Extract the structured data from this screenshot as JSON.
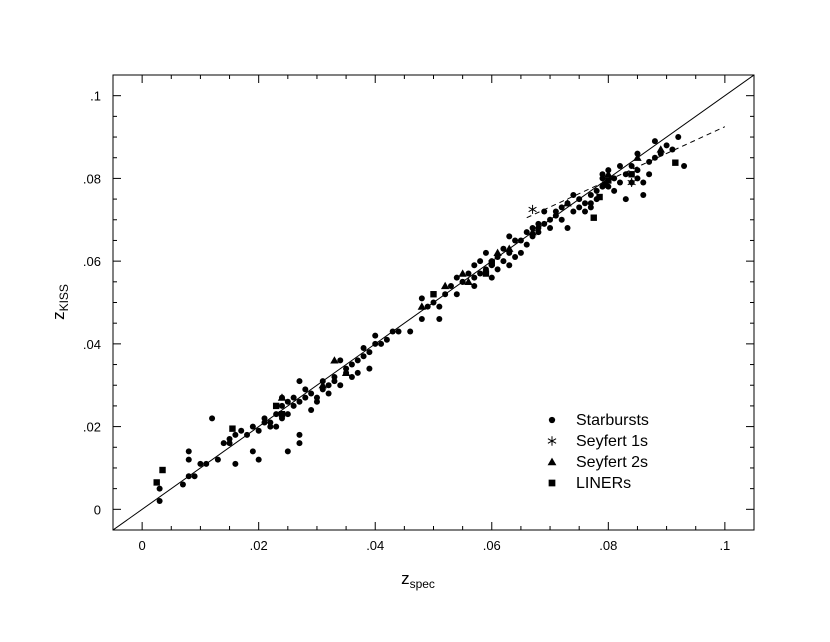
{
  "chart_data": {
    "type": "scatter",
    "title": "",
    "xlabel": {
      "main": "z",
      "sub": "spec"
    },
    "ylabel": {
      "main": "z",
      "sub": "KISS"
    },
    "xlim": [
      -0.005,
      0.105
    ],
    "ylim": [
      -0.005,
      0.105
    ],
    "xticks": [
      0,
      0.02,
      0.04,
      0.06,
      0.08,
      0.1
    ],
    "xtick_labels": [
      "0",
      ".02",
      ".04",
      ".06",
      ".08",
      ".1"
    ],
    "yticks": [
      0,
      0.02,
      0.04,
      0.06,
      0.08,
      0.1
    ],
    "ytick_labels": [
      "0",
      ".02",
      ".04",
      ".06",
      ".08",
      ".1"
    ],
    "grid": false,
    "legend_position": "bottom-right",
    "lines": [
      {
        "kind": "identity",
        "style": "solid",
        "points": [
          [
            -0.005,
            -0.005
          ],
          [
            0.105,
            0.105
          ]
        ]
      },
      {
        "kind": "fit",
        "style": "dashed",
        "points": [
          [
            0.066,
            0.0705
          ],
          [
            0.1,
            0.0925
          ]
        ]
      }
    ],
    "series": [
      {
        "name": "Starbursts",
        "marker": "circle",
        "points": [
          [
            0.003,
            0.002
          ],
          [
            0.003,
            0.005
          ],
          [
            0.007,
            0.006
          ],
          [
            0.008,
            0.008
          ],
          [
            0.008,
            0.012
          ],
          [
            0.008,
            0.014
          ],
          [
            0.009,
            0.008
          ],
          [
            0.01,
            0.011
          ],
          [
            0.011,
            0.011
          ],
          [
            0.012,
            0.022
          ],
          [
            0.013,
            0.012
          ],
          [
            0.014,
            0.016
          ],
          [
            0.015,
            0.016
          ],
          [
            0.015,
            0.017
          ],
          [
            0.016,
            0.011
          ],
          [
            0.016,
            0.018
          ],
          [
            0.017,
            0.019
          ],
          [
            0.018,
            0.018
          ],
          [
            0.019,
            0.014
          ],
          [
            0.019,
            0.02
          ],
          [
            0.02,
            0.012
          ],
          [
            0.02,
            0.019
          ],
          [
            0.021,
            0.021
          ],
          [
            0.021,
            0.022
          ],
          [
            0.022,
            0.02
          ],
          [
            0.022,
            0.021
          ],
          [
            0.023,
            0.023
          ],
          [
            0.023,
            0.02
          ],
          [
            0.024,
            0.022
          ],
          [
            0.024,
            0.027
          ],
          [
            0.024,
            0.025
          ],
          [
            0.025,
            0.014
          ],
          [
            0.025,
            0.023
          ],
          [
            0.025,
            0.026
          ],
          [
            0.026,
            0.027
          ],
          [
            0.026,
            0.025
          ],
          [
            0.027,
            0.016
          ],
          [
            0.027,
            0.018
          ],
          [
            0.027,
            0.026
          ],
          [
            0.027,
            0.031
          ],
          [
            0.028,
            0.029
          ],
          [
            0.028,
            0.027
          ],
          [
            0.029,
            0.024
          ],
          [
            0.029,
            0.028
          ],
          [
            0.03,
            0.027
          ],
          [
            0.03,
            0.026
          ],
          [
            0.031,
            0.029
          ],
          [
            0.031,
            0.031
          ],
          [
            0.032,
            0.03
          ],
          [
            0.032,
            0.028
          ],
          [
            0.033,
            0.031
          ],
          [
            0.033,
            0.032
          ],
          [
            0.034,
            0.03
          ],
          [
            0.034,
            0.036
          ],
          [
            0.035,
            0.033
          ],
          [
            0.035,
            0.034
          ],
          [
            0.036,
            0.035
          ],
          [
            0.036,
            0.032
          ],
          [
            0.037,
            0.033
          ],
          [
            0.037,
            0.036
          ],
          [
            0.038,
            0.039
          ],
          [
            0.038,
            0.037
          ],
          [
            0.039,
            0.038
          ],
          [
            0.039,
            0.034
          ],
          [
            0.04,
            0.04
          ],
          [
            0.04,
            0.042
          ],
          [
            0.041,
            0.04
          ],
          [
            0.042,
            0.041
          ],
          [
            0.043,
            0.043
          ],
          [
            0.044,
            0.043
          ],
          [
            0.046,
            0.043
          ],
          [
            0.048,
            0.046
          ],
          [
            0.048,
            0.051
          ],
          [
            0.049,
            0.049
          ],
          [
            0.05,
            0.05
          ],
          [
            0.051,
            0.049
          ],
          [
            0.051,
            0.046
          ],
          [
            0.052,
            0.052
          ],
          [
            0.053,
            0.054
          ],
          [
            0.054,
            0.056
          ],
          [
            0.054,
            0.052
          ],
          [
            0.055,
            0.055
          ],
          [
            0.056,
            0.057
          ],
          [
            0.057,
            0.056
          ],
          [
            0.057,
            0.054
          ],
          [
            0.058,
            0.06
          ],
          [
            0.058,
            0.057
          ],
          [
            0.059,
            0.058
          ],
          [
            0.059,
            0.062
          ],
          [
            0.06,
            0.059
          ],
          [
            0.06,
            0.06
          ],
          [
            0.06,
            0.056
          ],
          [
            0.061,
            0.058
          ],
          [
            0.061,
            0.061
          ],
          [
            0.062,
            0.063
          ],
          [
            0.062,
            0.06
          ],
          [
            0.063,
            0.062
          ],
          [
            0.063,
            0.059
          ],
          [
            0.064,
            0.065
          ],
          [
            0.064,
            0.061
          ],
          [
            0.065,
            0.062
          ],
          [
            0.065,
            0.065
          ],
          [
            0.066,
            0.064
          ],
          [
            0.066,
            0.067
          ],
          [
            0.067,
            0.068
          ],
          [
            0.067,
            0.066
          ],
          [
            0.068,
            0.068
          ],
          [
            0.068,
            0.067
          ],
          [
            0.069,
            0.069
          ],
          [
            0.069,
            0.072
          ],
          [
            0.07,
            0.068
          ],
          [
            0.07,
            0.07
          ],
          [
            0.071,
            0.072
          ],
          [
            0.071,
            0.071
          ],
          [
            0.072,
            0.073
          ],
          [
            0.072,
            0.07
          ],
          [
            0.073,
            0.074
          ],
          [
            0.073,
            0.068
          ],
          [
            0.074,
            0.072
          ],
          [
            0.074,
            0.076
          ],
          [
            0.075,
            0.073
          ],
          [
            0.075,
            0.075
          ],
          [
            0.076,
            0.074
          ],
          [
            0.076,
            0.072
          ],
          [
            0.077,
            0.076
          ],
          [
            0.077,
            0.073
          ],
          [
            0.078,
            0.077
          ],
          [
            0.078,
            0.075
          ],
          [
            0.079,
            0.078
          ],
          [
            0.079,
            0.08
          ],
          [
            0.08,
            0.078
          ],
          [
            0.08,
            0.082
          ],
          [
            0.081,
            0.077
          ],
          [
            0.081,
            0.08
          ],
          [
            0.082,
            0.083
          ],
          [
            0.082,
            0.079
          ],
          [
            0.083,
            0.081
          ],
          [
            0.083,
            0.075
          ],
          [
            0.084,
            0.083
          ],
          [
            0.084,
            0.079
          ],
          [
            0.085,
            0.082
          ],
          [
            0.085,
            0.086
          ],
          [
            0.086,
            0.076
          ],
          [
            0.086,
            0.079
          ],
          [
            0.087,
            0.084
          ],
          [
            0.087,
            0.081
          ],
          [
            0.088,
            0.085
          ],
          [
            0.088,
            0.089
          ],
          [
            0.089,
            0.086
          ],
          [
            0.09,
            0.088
          ],
          [
            0.091,
            0.087
          ],
          [
            0.092,
            0.09
          ],
          [
            0.093,
            0.083
          ],
          [
            0.055,
            0.055
          ],
          [
            0.057,
            0.059
          ],
          [
            0.063,
            0.066
          ],
          [
            0.077,
            0.074
          ],
          [
            0.079,
            0.081
          ],
          [
            0.085,
            0.08
          ],
          [
            0.068,
            0.069
          ]
        ]
      },
      {
        "name": "Seyfert 1s",
        "marker": "asterisk",
        "points": [
          [
            0.067,
            0.0725
          ],
          [
            0.084,
            0.079
          ]
        ]
      },
      {
        "name": "Seyfert 2s",
        "marker": "triangle",
        "points": [
          [
            0.024,
            0.027
          ],
          [
            0.031,
            0.03
          ],
          [
            0.033,
            0.036
          ],
          [
            0.035,
            0.033
          ],
          [
            0.048,
            0.049
          ],
          [
            0.052,
            0.054
          ],
          [
            0.055,
            0.057
          ],
          [
            0.056,
            0.055
          ],
          [
            0.061,
            0.062
          ],
          [
            0.063,
            0.063
          ],
          [
            0.067,
            0.067
          ],
          [
            0.073,
            0.074
          ],
          [
            0.08,
            0.081
          ],
          [
            0.085,
            0.085
          ],
          [
            0.089,
            0.087
          ]
        ]
      },
      {
        "name": "LINERs",
        "marker": "square",
        "points": [
          [
            0.0025,
            0.0065
          ],
          [
            0.0035,
            0.0095
          ],
          [
            0.0155,
            0.0195
          ],
          [
            0.023,
            0.025
          ],
          [
            0.024,
            0.023
          ],
          [
            0.05,
            0.052
          ],
          [
            0.059,
            0.057
          ],
          [
            0.06,
            0.0595
          ],
          [
            0.0785,
            0.0755
          ],
          [
            0.0795,
            0.0785
          ],
          [
            0.08,
            0.0795
          ],
          [
            0.0775,
            0.0705
          ],
          [
            0.0915,
            0.0838
          ],
          [
            0.084,
            0.081
          ]
        ]
      }
    ]
  }
}
